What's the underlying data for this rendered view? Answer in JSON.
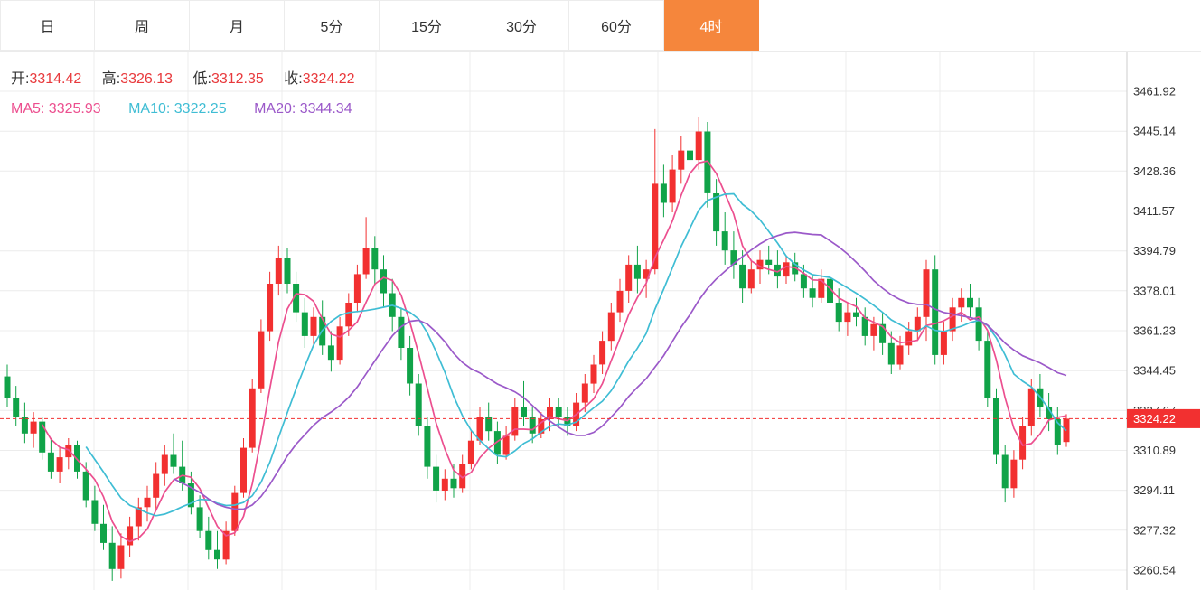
{
  "tabs": [
    {
      "label": "日",
      "active": false
    },
    {
      "label": "周",
      "active": false
    },
    {
      "label": "月",
      "active": false
    },
    {
      "label": "5分",
      "active": false
    },
    {
      "label": "15分",
      "active": false
    },
    {
      "label": "30分",
      "active": false
    },
    {
      "label": "60分",
      "active": false
    },
    {
      "label": "4时",
      "active": true
    }
  ],
  "legend": {
    "open_label": "开:",
    "open": "3314.42",
    "high_label": "高:",
    "high": "3326.13",
    "low_label": "低:",
    "low": "3312.35",
    "close_label": "收:",
    "close": "3324.22",
    "ma5_text": "MA5: 3325.93",
    "ma10_text": "MA10: 3322.25",
    "ma20_text": "MA20: 3344.34"
  },
  "colors": {
    "up": "#f23030",
    "down": "#10a348",
    "ma5": "#ec4f8f",
    "ma10": "#3fbdd4",
    "ma20": "#9b59c9",
    "grid": "#ececec",
    "axis_line": "#cccccc",
    "axis_text": "#333333",
    "active_tab": "#f5863c",
    "price_tag_bg": "#f23030",
    "price_tag_text": "#ffffff"
  },
  "chart_data": {
    "type": "candlestick",
    "title": "",
    "xlabel": "",
    "ylabel": "",
    "legend_position": "top-left",
    "grid": true,
    "y_ticks": [
      3461.92,
      3445.14,
      3428.36,
      3411.57,
      3394.79,
      3378.01,
      3361.23,
      3344.45,
      3327.67,
      3310.89,
      3294.11,
      3277.32,
      3260.54
    ],
    "ylim": [
      3252,
      3470
    ],
    "current_price": 3324.22,
    "current_candle": {
      "open": 3314.42,
      "high": 3326.13,
      "low": 3312.35,
      "close": 3324.22
    },
    "ma_values": {
      "MA5": 3325.93,
      "MA10": 3322.25,
      "MA20": 3344.34
    },
    "ma_periods": [
      5,
      10,
      20
    ],
    "candles": [
      [
        3342,
        3347,
        3329,
        3333
      ],
      [
        3333,
        3338,
        3321,
        3325
      ],
      [
        3325,
        3331,
        3314,
        3318
      ],
      [
        3318,
        3327,
        3312,
        3323
      ],
      [
        3323,
        3325,
        3307,
        3310
      ],
      [
        3310,
        3316,
        3299,
        3302
      ],
      [
        3302,
        3312,
        3297,
        3308
      ],
      [
        3308,
        3316,
        3303,
        3313
      ],
      [
        3313,
        3315,
        3299,
        3302
      ],
      [
        3302,
        3306,
        3287,
        3290
      ],
      [
        3290,
        3296,
        3277,
        3280
      ],
      [
        3280,
        3288,
        3269,
        3272
      ],
      [
        3272,
        3279,
        3256,
        3261
      ],
      [
        3261,
        3276,
        3257,
        3271
      ],
      [
        3271,
        3283,
        3266,
        3279
      ],
      [
        3279,
        3291,
        3273,
        3287
      ],
      [
        3287,
        3296,
        3281,
        3291
      ],
      [
        3291,
        3306,
        3286,
        3301
      ],
      [
        3301,
        3313,
        3296,
        3309
      ],
      [
        3309,
        3318,
        3301,
        3304
      ],
      [
        3304,
        3315,
        3294,
        3297
      ],
      [
        3297,
        3302,
        3284,
        3287
      ],
      [
        3287,
        3292,
        3274,
        3277
      ],
      [
        3277,
        3283,
        3265,
        3269
      ],
      [
        3269,
        3277,
        3261,
        3265
      ],
      [
        3265,
        3281,
        3263,
        3277
      ],
      [
        3277,
        3296,
        3275,
        3293
      ],
      [
        3293,
        3316,
        3291,
        3312
      ],
      [
        3312,
        3341,
        3310,
        3337
      ],
      [
        3337,
        3366,
        3335,
        3361
      ],
      [
        3361,
        3386,
        3357,
        3381
      ],
      [
        3381,
        3397,
        3376,
        3392
      ],
      [
        3392,
        3396,
        3377,
        3381
      ],
      [
        3381,
        3386,
        3365,
        3369
      ],
      [
        3369,
        3375,
        3354,
        3359
      ],
      [
        3359,
        3371,
        3355,
        3367
      ],
      [
        3367,
        3374,
        3351,
        3355
      ],
      [
        3355,
        3361,
        3344,
        3349
      ],
      [
        3349,
        3367,
        3347,
        3363
      ],
      [
        3363,
        3377,
        3359,
        3373
      ],
      [
        3373,
        3389,
        3369,
        3385
      ],
      [
        3385,
        3409,
        3383,
        3396
      ],
      [
        3396,
        3401,
        3381,
        3387
      ],
      [
        3387,
        3393,
        3371,
        3377
      ],
      [
        3377,
        3383,
        3361,
        3367
      ],
      [
        3367,
        3371,
        3349,
        3354
      ],
      [
        3354,
        3359,
        3334,
        3339
      ],
      [
        3339,
        3343,
        3317,
        3321
      ],
      [
        3321,
        3325,
        3299,
        3304
      ],
      [
        3304,
        3309,
        3289,
        3294
      ],
      [
        3294,
        3303,
        3290,
        3299
      ],
      [
        3299,
        3305,
        3291,
        3295
      ],
      [
        3295,
        3309,
        3293,
        3305
      ],
      [
        3305,
        3319,
        3303,
        3315
      ],
      [
        3315,
        3329,
        3313,
        3325
      ],
      [
        3325,
        3331,
        3315,
        3319
      ],
      [
        3319,
        3323,
        3305,
        3309
      ],
      [
        3309,
        3321,
        3307,
        3317
      ],
      [
        3317,
        3333,
        3315,
        3329
      ],
      [
        3329,
        3340,
        3321,
        3325
      ],
      [
        3325,
        3329,
        3314,
        3318
      ],
      [
        3318,
        3327,
        3316,
        3324
      ],
      [
        3324,
        3333,
        3319,
        3329
      ],
      [
        3329,
        3333,
        3321,
        3325
      ],
      [
        3325,
        3329,
        3317,
        3321
      ],
      [
        3321,
        3335,
        3319,
        3331
      ],
      [
        3331,
        3343,
        3327,
        3339
      ],
      [
        3339,
        3351,
        3335,
        3347
      ],
      [
        3347,
        3361,
        3343,
        3357
      ],
      [
        3357,
        3373,
        3353,
        3369
      ],
      [
        3369,
        3383,
        3365,
        3378
      ],
      [
        3378,
        3393,
        3373,
        3389
      ],
      [
        3389,
        3397,
        3377,
        3383
      ],
      [
        3383,
        3391,
        3375,
        3387
      ],
      [
        3387,
        3446,
        3385,
        3423
      ],
      [
        3423,
        3431,
        3409,
        3415
      ],
      [
        3415,
        3435,
        3411,
        3429
      ],
      [
        3429,
        3443,
        3423,
        3437
      ],
      [
        3437,
        3449,
        3427,
        3433
      ],
      [
        3433,
        3451,
        3429,
        3445
      ],
      [
        3445,
        3449,
        3413,
        3419
      ],
      [
        3419,
        3425,
        3397,
        3403
      ],
      [
        3403,
        3411,
        3389,
        3395
      ],
      [
        3395,
        3403,
        3383,
        3389
      ],
      [
        3389,
        3395,
        3373,
        3379
      ],
      [
        3379,
        3391,
        3377,
        3387
      ],
      [
        3387,
        3395,
        3381,
        3391
      ],
      [
        3391,
        3397,
        3385,
        3389
      ],
      [
        3389,
        3395,
        3379,
        3384
      ],
      [
        3384,
        3393,
        3381,
        3390
      ],
      [
        3390,
        3394,
        3382,
        3385
      ],
      [
        3385,
        3389,
        3375,
        3379
      ],
      [
        3379,
        3385,
        3371,
        3375
      ],
      [
        3375,
        3387,
        3373,
        3383
      ],
      [
        3383,
        3389,
        3369,
        3373
      ],
      [
        3373,
        3379,
        3361,
        3365
      ],
      [
        3365,
        3373,
        3359,
        3369
      ],
      [
        3369,
        3375,
        3363,
        3367
      ],
      [
        3367,
        3371,
        3355,
        3359
      ],
      [
        3359,
        3367,
        3353,
        3364
      ],
      [
        3364,
        3369,
        3351,
        3356
      ],
      [
        3356,
        3361,
        3343,
        3347
      ],
      [
        3347,
        3359,
        3345,
        3355
      ],
      [
        3355,
        3365,
        3351,
        3361
      ],
      [
        3361,
        3371,
        3357,
        3367
      ],
      [
        3367,
        3391,
        3357,
        3387
      ],
      [
        3387,
        3393,
        3347,
        3351
      ],
      [
        3351,
        3365,
        3347,
        3361
      ],
      [
        3361,
        3375,
        3357,
        3371
      ],
      [
        3371,
        3379,
        3365,
        3375
      ],
      [
        3375,
        3381,
        3367,
        3371
      ],
      [
        3371,
        3375,
        3353,
        3357
      ],
      [
        3357,
        3361,
        3329,
        3333
      ],
      [
        3333,
        3337,
        3305,
        3309
      ],
      [
        3309,
        3313,
        3289,
        3295
      ],
      [
        3295,
        3311,
        3291,
        3307
      ],
      [
        3307,
        3325,
        3303,
        3321
      ],
      [
        3321,
        3341,
        3317,
        3337
      ],
      [
        3337,
        3343,
        3325,
        3329
      ],
      [
        3329,
        3335,
        3319,
        3324
      ],
      [
        3324,
        3329,
        3309,
        3313
      ],
      [
        3314.42,
        3326.13,
        3312.35,
        3324.22
      ]
    ]
  }
}
